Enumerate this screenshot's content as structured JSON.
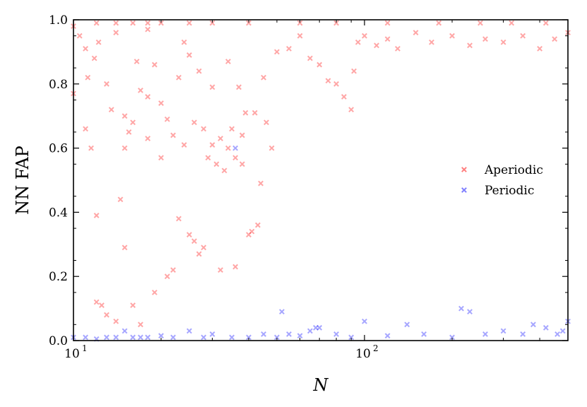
{
  "chart_data": {
    "type": "scatter",
    "title": "",
    "xlabel": "N",
    "ylabel": "NN FAP",
    "xscale": "log",
    "xlim": [
      10,
      500
    ],
    "ylim": [
      0,
      1.0
    ],
    "grid": false,
    "legend_placement": "center-right",
    "x_ticks": [
      {
        "value": 10,
        "label": "10",
        "exp": "1"
      },
      {
        "value": 100,
        "label": "10",
        "exp": "2"
      }
    ],
    "y_ticks": [
      {
        "value": 0.0,
        "label": "0.0"
      },
      {
        "value": 0.2,
        "label": "0.2"
      },
      {
        "value": 0.4,
        "label": "0.4"
      },
      {
        "value": 0.6,
        "label": "0.6"
      },
      {
        "value": 0.8,
        "label": "0.8"
      },
      {
        "value": 1.0,
        "label": "1.0"
      }
    ],
    "series": [
      {
        "name": "Aperiodic",
        "color": "#ff0000",
        "marker": "x",
        "note_points": "representative subset of visible points",
        "x": [
          10,
          10,
          10.5,
          11,
          11,
          11.2,
          11.5,
          11.8,
          12,
          12,
          12.2,
          12.5,
          13,
          13,
          13.5,
          14,
          14,
          14.5,
          15,
          15,
          15,
          15.5,
          16,
          16,
          16.5,
          17,
          17,
          18,
          18,
          18,
          19,
          19,
          20,
          20,
          21,
          21,
          22,
          22,
          23,
          23,
          24,
          24,
          25,
          25,
          26,
          26,
          27,
          27,
          28,
          28,
          29,
          30,
          30,
          31,
          32,
          32,
          33,
          34,
          34,
          35,
          36,
          36,
          37,
          38,
          38,
          39,
          40,
          41,
          42,
          43,
          44,
          45,
          46,
          48,
          50,
          55,
          60,
          65,
          70,
          75,
          80,
          85,
          90,
          92,
          95,
          100,
          110,
          120,
          130,
          150,
          170,
          200,
          230,
          260,
          300,
          350,
          400,
          450,
          500,
          12,
          14,
          16,
          18,
          20,
          25,
          30,
          40,
          60,
          80,
          120,
          180,
          250,
          320,
          420
        ],
        "y": [
          0.98,
          0.77,
          0.95,
          0.91,
          0.66,
          0.82,
          0.6,
          0.88,
          0.39,
          0.12,
          0.93,
          0.11,
          0.8,
          0.08,
          0.72,
          0.96,
          0.06,
          0.44,
          0.7,
          0.6,
          0.29,
          0.65,
          0.68,
          0.11,
          0.87,
          0.78,
          0.05,
          0.97,
          0.76,
          0.63,
          0.86,
          0.15,
          0.74,
          0.57,
          0.69,
          0.2,
          0.64,
          0.22,
          0.82,
          0.38,
          0.93,
          0.61,
          0.89,
          0.33,
          0.68,
          0.31,
          0.84,
          0.27,
          0.66,
          0.29,
          0.57,
          0.79,
          0.61,
          0.55,
          0.63,
          0.22,
          0.53,
          0.87,
          0.6,
          0.66,
          0.57,
          0.23,
          0.79,
          0.55,
          0.64,
          0.71,
          0.33,
          0.34,
          0.71,
          0.36,
          0.49,
          0.82,
          0.68,
          0.6,
          0.9,
          0.91,
          0.95,
          0.88,
          0.86,
          0.81,
          0.8,
          0.76,
          0.72,
          0.84,
          0.93,
          0.95,
          0.92,
          0.94,
          0.91,
          0.96,
          0.93,
          0.95,
          0.92,
          0.94,
          0.93,
          0.95,
          0.91,
          0.94,
          0.96,
          0.99,
          0.99,
          0.99,
          0.99,
          0.99,
          0.99,
          0.99,
          0.99,
          0.99,
          0.99,
          0.99,
          0.99,
          0.99,
          0.99,
          0.99
        ]
      },
      {
        "name": "Periodic",
        "color": "#0000ff",
        "marker": "x",
        "note_points": "representative subset of visible points",
        "x": [
          10,
          11,
          12,
          13,
          14,
          15,
          16,
          17,
          18,
          20,
          22,
          25,
          28,
          30,
          35,
          36,
          40,
          45,
          50,
          52,
          55,
          60,
          65,
          68,
          70,
          80,
          90,
          100,
          120,
          140,
          160,
          200,
          215,
          230,
          260,
          300,
          350,
          380,
          420,
          460,
          480,
          500
        ],
        "y": [
          0.01,
          0.01,
          0.005,
          0.01,
          0.01,
          0.03,
          0.01,
          0.01,
          0.01,
          0.015,
          0.01,
          0.03,
          0.01,
          0.02,
          0.01,
          0.6,
          0.01,
          0.02,
          0.01,
          0.09,
          0.02,
          0.015,
          0.03,
          0.04,
          0.04,
          0.02,
          0.01,
          0.06,
          0.015,
          0.05,
          0.02,
          0.01,
          0.1,
          0.09,
          0.02,
          0.03,
          0.02,
          0.05,
          0.04,
          0.02,
          0.03,
          0.06
        ]
      }
    ]
  }
}
